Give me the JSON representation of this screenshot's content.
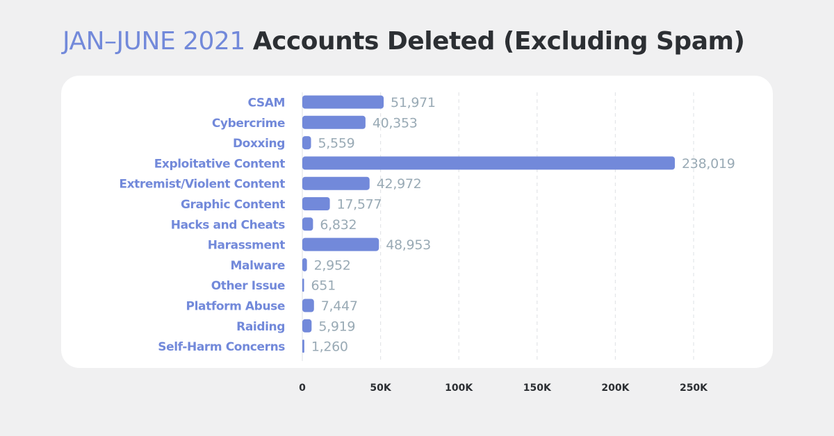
{
  "colors": {
    "accent": "#7289da",
    "title_dark": "#2c2f33",
    "value_text": "#99aab5",
    "category_text": "#7289da",
    "tick_text": "#2c2f33",
    "grid": "#e3e5e8",
    "card": "#ffffff",
    "background": "#f0f0f1"
  },
  "chart_data": {
    "type": "bar",
    "orientation": "horizontal",
    "title_lead": "JAN–JUNE 2021",
    "title": "Accounts Deleted (Excluding Spam)",
    "xlabel": "",
    "ylabel": "",
    "categories": [
      "CSAM",
      "Cybercrime",
      "Doxxing",
      "Exploitative Content",
      "Extremist/Violent Content",
      "Graphic Content",
      "Hacks and Cheats",
      "Harassment",
      "Malware",
      "Other Issue",
      "Platform Abuse",
      "Raiding",
      "Self-Harm Concerns"
    ],
    "values": [
      51971,
      40353,
      5559,
      238019,
      42972,
      17577,
      6832,
      48953,
      2952,
      651,
      7447,
      5919,
      1260
    ],
    "value_labels": [
      "51,971",
      "40,353",
      "5,559",
      "238,019",
      "42,972",
      "17,577",
      "6,832",
      "48,953",
      "2,952",
      "651",
      "7,447",
      "5,919",
      "1,260"
    ],
    "xlim": [
      0,
      250000
    ],
    "xticks": [
      0,
      50000,
      100000,
      150000,
      200000,
      250000
    ],
    "xtick_labels": [
      "0",
      "50K",
      "100K",
      "150K",
      "200K",
      "250K"
    ],
    "grid": true,
    "grid_style": "dashed",
    "legend": "none"
  }
}
